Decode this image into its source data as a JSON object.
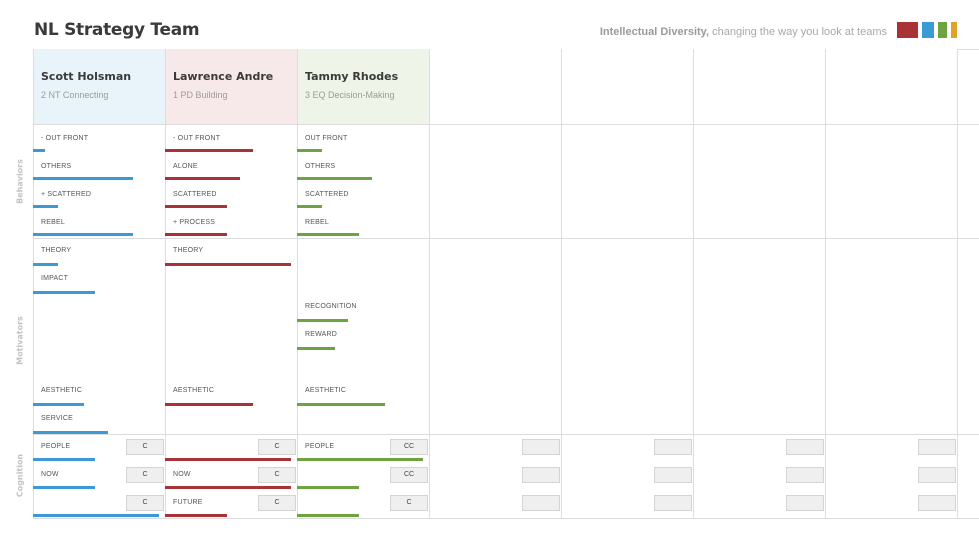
{
  "header": {
    "title": "NL Strategy Team",
    "tagline_bold": "Intellectual Diversity,",
    "tagline_rest": " changing the way you look at teams",
    "logo_colors": [
      "#a93237",
      "#3b9ad6",
      "#6ea43f",
      "#e1a229"
    ]
  },
  "sections": {
    "behaviors": "Behaviors",
    "motivators": "Motivators",
    "cognition": "Cognition"
  },
  "colors": {
    "blue": "#3b9ad6",
    "red": "#a93237",
    "green": "#6ea43f"
  },
  "members": [
    {
      "name": "Scott Holsman",
      "type": "2 NT Connecting",
      "header_bg": "#e8f3fa",
      "bar_color": "#3b9ad6",
      "behaviors": [
        {
          "label": "- OUT FRONT",
          "level": 0.09
        },
        {
          "label": "OTHERS",
          "level": 0.77
        },
        {
          "label": "+ SCATTERED",
          "level": 0.19
        },
        {
          "label": "REBEL",
          "level": 0.77
        }
      ],
      "motivators": [
        {
          "label": "THEORY",
          "level": 0.19,
          "row": 0
        },
        {
          "label": "IMPACT",
          "level": 0.48,
          "row": 1
        },
        {
          "label": "AESTHETIC",
          "level": 0.39,
          "row": 5
        },
        {
          "label": "SERVICE",
          "level": 0.58,
          "row": 6
        }
      ],
      "cognition": [
        {
          "label": "PEOPLE",
          "level": 0.48,
          "code": "C"
        },
        {
          "label": "NOW",
          "level": 0.48,
          "code": "C"
        },
        {
          "label": "",
          "level": 0.97,
          "code": "C"
        }
      ]
    },
    {
      "name": "Lawrence Andre",
      "type": "1 PD Building",
      "header_bg": "#f7e9e9",
      "bar_color": "#a93237",
      "behaviors": [
        {
          "label": "- OUT FRONT",
          "level": 0.68
        },
        {
          "label": "ALONE",
          "level": 0.58
        },
        {
          "label": "SCATTERED",
          "level": 0.48
        },
        {
          "label": "+ PROCESS",
          "level": 0.48
        }
      ],
      "motivators": [
        {
          "label": "THEORY",
          "level": 0.97,
          "row": 0
        },
        {
          "label": "AESTHETIC",
          "level": 0.68,
          "row": 5
        }
      ],
      "cognition": [
        {
          "label": "",
          "level": 0.97,
          "code": "C"
        },
        {
          "label": "NOW",
          "level": 0.97,
          "code": "C"
        },
        {
          "label": "FUTURE",
          "level": 0.48,
          "code": "C"
        }
      ]
    },
    {
      "name": "Tammy Rhodes",
      "type": "3 EQ Decision-Making",
      "header_bg": "#eef4e8",
      "bar_color": "#6ea43f",
      "behaviors": [
        {
          "label": "OUT FRONT",
          "level": 0.19
        },
        {
          "label": "OTHERS",
          "level": 0.58
        },
        {
          "label": "SCATTERED",
          "level": 0.19
        },
        {
          "label": "REBEL",
          "level": 0.48
        }
      ],
      "motivators": [
        {
          "label": "RECOGNITION",
          "level": 0.39,
          "row": 2
        },
        {
          "label": "REWARD",
          "level": 0.29,
          "row": 3
        },
        {
          "label": "AESTHETIC",
          "level": 0.68,
          "row": 5
        }
      ],
      "cognition": [
        {
          "label": "PEOPLE",
          "level": 0.97,
          "code": "CC"
        },
        {
          "label": "",
          "level": 0.48,
          "code": "CC"
        },
        {
          "label": "",
          "level": 0.48,
          "code": "C"
        }
      ]
    },
    {
      "name": "",
      "type": "",
      "header_bg": "#ffffff",
      "bar_color": "#cccccc",
      "behaviors": [],
      "motivators": [],
      "cognition": [
        {
          "label": "",
          "level": 0,
          "code": ""
        },
        {
          "label": "",
          "level": 0,
          "code": ""
        },
        {
          "label": "",
          "level": 0,
          "code": ""
        }
      ]
    },
    {
      "name": "",
      "type": "",
      "header_bg": "#ffffff",
      "bar_color": "#cccccc",
      "behaviors": [],
      "motivators": [],
      "cognition": [
        {
          "label": "",
          "level": 0,
          "code": ""
        },
        {
          "label": "",
          "level": 0,
          "code": ""
        },
        {
          "label": "",
          "level": 0,
          "code": ""
        }
      ]
    },
    {
      "name": "",
      "type": "",
      "header_bg": "#ffffff",
      "bar_color": "#cccccc",
      "behaviors": [],
      "motivators": [],
      "cognition": [
        {
          "label": "",
          "level": 0,
          "code": ""
        },
        {
          "label": "",
          "level": 0,
          "code": ""
        },
        {
          "label": "",
          "level": 0,
          "code": ""
        }
      ]
    },
    {
      "name": "",
      "type": "",
      "header_bg": "#ffffff",
      "bar_color": "#cccccc",
      "behaviors": [],
      "motivators": [],
      "cognition": [
        {
          "label": "",
          "level": 0,
          "code": ""
        },
        {
          "label": "",
          "level": 0,
          "code": ""
        },
        {
          "label": "",
          "level": 0,
          "code": ""
        }
      ]
    }
  ]
}
